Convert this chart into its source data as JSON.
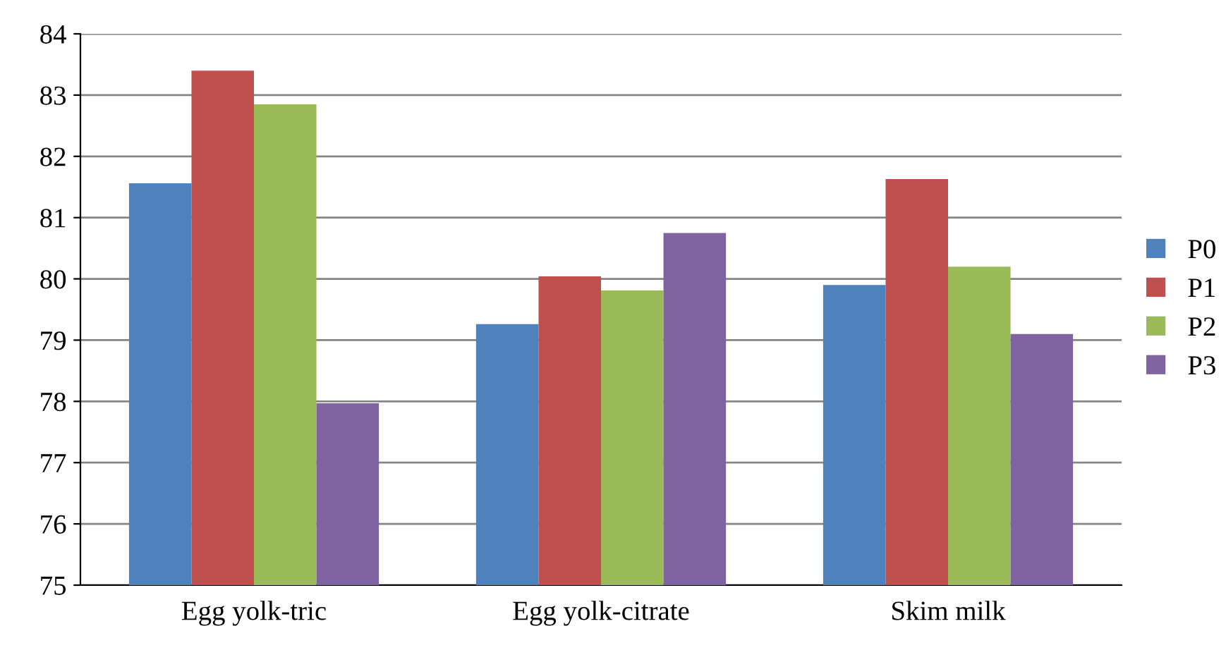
{
  "chart_data": {
    "type": "bar",
    "categories": [
      "Egg yolk-tric",
      "Egg yolk-citrate",
      "Skim milk"
    ],
    "series": [
      {
        "name": "P0",
        "color": "#4f81bd",
        "values": [
          81.56,
          79.26,
          79.9
        ]
      },
      {
        "name": "P1",
        "color": "#c0504d",
        "values": [
          83.4,
          80.04,
          81.63
        ]
      },
      {
        "name": "P2",
        "color": "#9bbb59",
        "values": [
          82.85,
          79.81,
          80.2
        ]
      },
      {
        "name": "P3",
        "color": "#8064a2",
        "values": [
          77.97,
          80.75,
          79.1
        ]
      }
    ],
    "ylim": [
      75,
      84
    ],
    "yticks": [
      75,
      76,
      77,
      78,
      79,
      80,
      81,
      82,
      83,
      84
    ],
    "grid": "y",
    "legend": "right"
  }
}
